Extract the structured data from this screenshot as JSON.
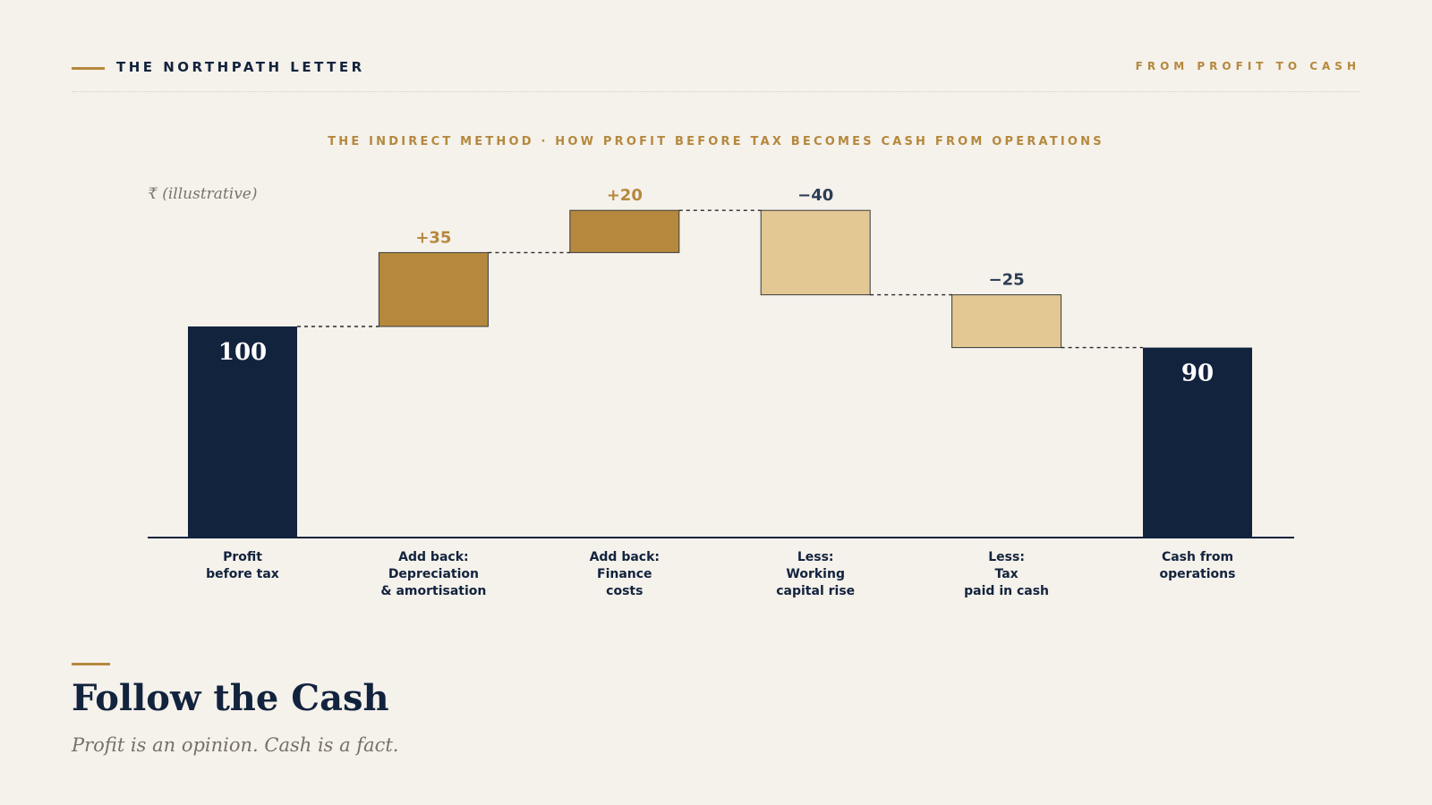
{
  "masthead": {
    "title": "THE NORTHPATH LETTER",
    "tagline": "FROM PROFIT TO CASH"
  },
  "chart_data": {
    "type": "bar",
    "subtitle": "THE INDIRECT METHOD  ·  HOW PROFIT BEFORE TAX BECOMES CASH FROM OPERATIONS",
    "unit_note": "₹ (illustrative)",
    "steps": [
      {
        "kind": "total",
        "label": [
          "Profit",
          "before tax"
        ],
        "value": 100,
        "display": "100"
      },
      {
        "kind": "increase",
        "label": [
          "Add back:",
          "Depreciation",
          "& amortisation"
        ],
        "value": 35,
        "display": "+35"
      },
      {
        "kind": "increase",
        "label": [
          "Add back:",
          "Finance",
          "costs"
        ],
        "value": 20,
        "display": "+20"
      },
      {
        "kind": "decrease",
        "label": [
          "Less:",
          "Working",
          "capital rise"
        ],
        "value": -40,
        "display": "−40"
      },
      {
        "kind": "decrease",
        "label": [
          "Less:",
          "Tax",
          "paid in cash"
        ],
        "value": -25,
        "display": "−25"
      },
      {
        "kind": "total",
        "label": [
          "Cash from",
          "operations"
        ],
        "value": 90,
        "display": "90"
      }
    ],
    "ylim": [
      0,
      155
    ],
    "grid": false,
    "colors": {
      "total": "#12233d",
      "increase": "#b5883d",
      "decrease": "#e3c894",
      "increase_label": "#b5883d",
      "decrease_label": "#2d3e56",
      "total_label": "#ffffff",
      "axis": "#12233d",
      "category_label": "#12233d",
      "unit_note": "#7a746d"
    }
  },
  "footer": {
    "title": "Follow the Cash",
    "subtitle": "Profit is an opinion. Cash is a fact."
  }
}
